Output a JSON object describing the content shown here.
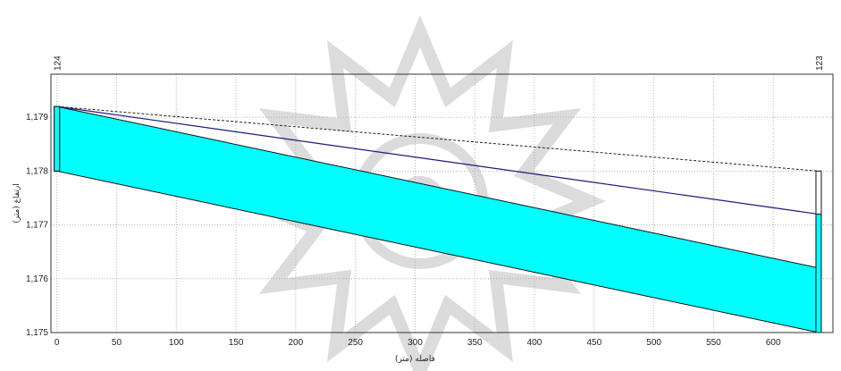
{
  "chart_data": {
    "type": "area",
    "title": "",
    "xlabel": "فاصله (متر)",
    "ylabel": "ارتفاع (متر)",
    "xlim": [
      -5,
      650
    ],
    "ylim": [
      1175,
      1179.8
    ],
    "x_ticks": [
      "0",
      "50",
      "100",
      "150",
      "200",
      "250",
      "300",
      "350",
      "400",
      "450",
      "500",
      "550",
      "600"
    ],
    "x_tick_values": [
      0,
      50,
      100,
      150,
      200,
      250,
      300,
      350,
      400,
      450,
      500,
      550,
      600
    ],
    "y_ticks": [
      "1,175",
      "1,176",
      "1,177",
      "1,178",
      "1,179"
    ],
    "y_tick_values": [
      1175,
      1176,
      1177,
      1178,
      1179
    ],
    "grid": true,
    "nodes": [
      {
        "label": "124",
        "x": 0
      },
      {
        "label": "123",
        "x": 638
      }
    ],
    "pipe_band": {
      "x": [
        0,
        638
      ],
      "top": [
        1179.2,
        1176.2
      ],
      "bottom": [
        1178.0,
        1175.0
      ],
      "color": "#00ffff"
    },
    "hydraulic_grade_line": {
      "x": [
        0,
        638
      ],
      "y": [
        1179.2,
        1177.2
      ],
      "color": "#1a1a7a"
    },
    "ground_line": {
      "x": [
        0,
        638
      ],
      "y": [
        1179.2,
        1178.0
      ],
      "style": "dashed",
      "color": "#222222"
    },
    "node_bars": [
      {
        "x": 0,
        "bottom": 1178.0,
        "top": 1179.2,
        "water_top": 1179.2
      },
      {
        "x": 638,
        "bottom": 1175.0,
        "top": 1178.0,
        "water_top": 1177.2
      }
    ]
  }
}
